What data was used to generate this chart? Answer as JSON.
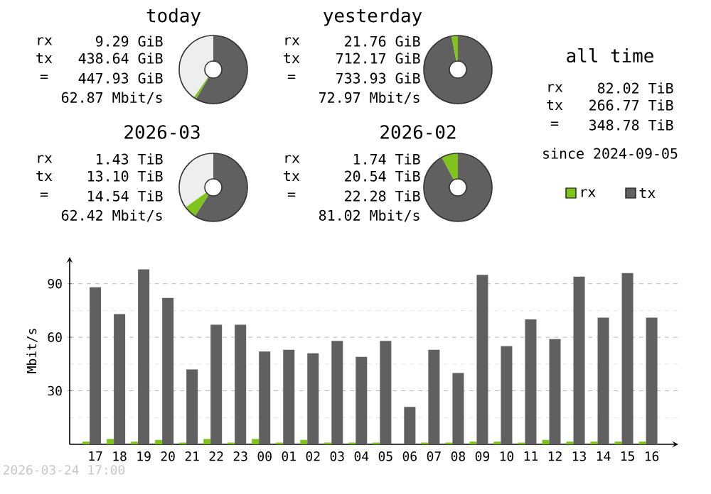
{
  "chart_data": [
    {
      "type": "donut",
      "title": "today",
      "categories": [
        null,
        null,
        null
      ],
      "values": [
        58.4,
        1.3,
        40.3
      ],
      "colors": [
        "#606060",
        "#7fc31c",
        "#eeeeee"
      ],
      "annotations": [
        "rx",
        "9.29 GiB",
        "tx",
        "438.64 GiB",
        "=",
        "447.93 GiB",
        "62.87 Mbit/s"
      ]
    },
    {
      "type": "donut",
      "title": "yesterday",
      "categories": [
        null,
        null
      ],
      "values": [
        97.0,
        3.0
      ],
      "colors": [
        "#606060",
        "#7fc31c"
      ],
      "annotations": [
        "rx",
        "21.76 GiB",
        "tx",
        "712.17 GiB",
        "=",
        "733.93 GiB",
        "72.97 Mbit/s"
      ]
    },
    {
      "type": "other",
      "title": "all time",
      "annotations": [
        "rx",
        "82.02 TiB",
        "tx",
        "266.77 TiB",
        "=",
        "348.78 TiB",
        "since 2024-09-05"
      ]
    },
    {
      "type": "donut",
      "title": "2026-03",
      "categories": [
        null,
        null,
        null
      ],
      "values": [
        59.0,
        6.1,
        34.9
      ],
      "colors": [
        "#606060",
        "#7fc31c",
        "#eeeeee"
      ],
      "annotations": [
        "rx",
        "1.43 TiB",
        "tx",
        "13.10 TiB",
        "=",
        "14.54 TiB",
        "62.42 Mbit/s"
      ]
    },
    {
      "type": "donut",
      "title": "2026-02",
      "categories": [
        null,
        null
      ],
      "values": [
        92.2,
        7.8
      ],
      "colors": [
        "#606060",
        "#7fc31c"
      ],
      "annotations": [
        "rx",
        "1.74 TiB",
        "tx",
        "20.54 TiB",
        "=",
        "22.28 TiB",
        "81.02 Mbit/s"
      ]
    },
    {
      "type": "bar",
      "ylabel": "Mbit/s",
      "categories": [
        "17",
        "18",
        "19",
        "20",
        "21",
        "22",
        "23",
        "00",
        "01",
        "02",
        "03",
        "04",
        "05",
        "06",
        "07",
        "08",
        "09",
        "10",
        "11",
        "12",
        "13",
        "14",
        "15",
        "16"
      ],
      "series": [
        {
          "name": "rx",
          "color": "#7fc31c",
          "values": [
            1.5,
            3,
            1.5,
            2.5,
            1,
            3,
            1,
            3,
            1,
            2.5,
            1,
            1,
            1,
            0,
            1,
            1,
            1.5,
            1.5,
            1,
            2.5,
            1.5,
            1.5,
            1.5,
            1.5
          ]
        },
        {
          "name": "tx",
          "color": "#606060",
          "values": [
            88,
            73,
            98,
            82,
            42,
            67,
            67,
            52,
            53,
            51,
            58,
            49,
            58,
            21,
            53,
            40,
            95,
            55,
            70,
            59,
            94,
            71,
            96,
            71
          ]
        }
      ],
      "ylim": [
        0,
        105
      ],
      "yticks": [
        {
          "value": 15,
          "label": null
        },
        30,
        {
          "value": 45,
          "label": null
        },
        60,
        {
          "value": 75,
          "label": null
        },
        90
      ],
      "grid": "y",
      "legend": "top right",
      "annotations": [
        "2026-03-24 17:00"
      ]
    }
  ]
}
